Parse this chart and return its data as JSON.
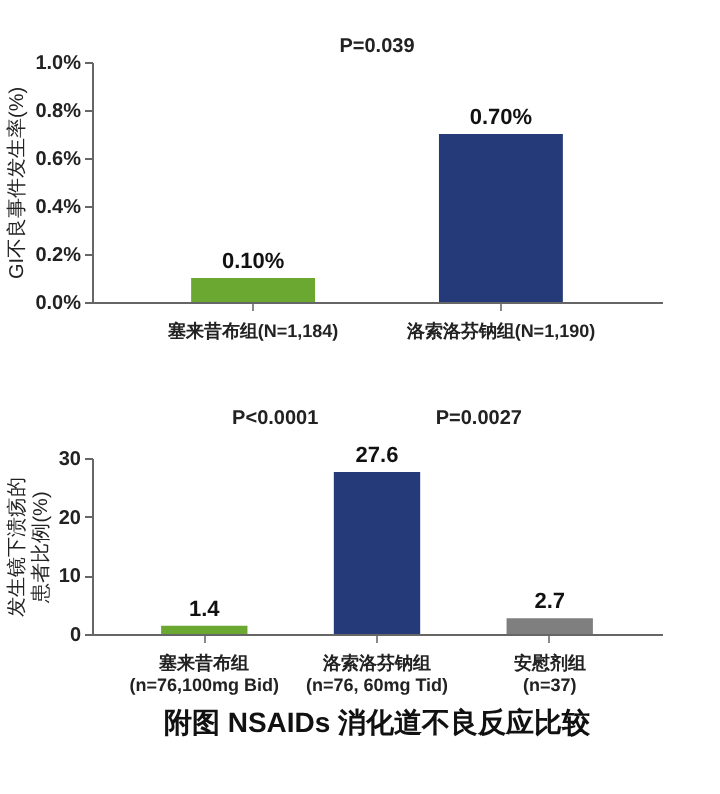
{
  "chart_data": [
    {
      "type": "bar",
      "ylabel": "GI不良事件发生率(%)",
      "categories": [
        "塞来昔布组(N=1,184)",
        "洛索洛芬钠组(N=1,190)"
      ],
      "values": [
        0.1,
        0.7
      ],
      "colors": [
        "#6aa832",
        "#253a78"
      ],
      "value_labels": [
        "0.10%",
        "0.70%"
      ],
      "ylim": [
        0,
        1.0
      ],
      "yticks": [
        {
          "value": 0,
          "label": "0.0%"
        },
        {
          "value": 0.2,
          "label": "0.2%"
        },
        {
          "value": 0.4,
          "label": "0.4%"
        },
        {
          "value": 0.6,
          "label": "0.6%"
        },
        {
          "value": 0.8,
          "label": "0.8%"
        },
        {
          "value": 1.0,
          "label": "1.0%"
        }
      ],
      "annotations": [
        "P=0.039"
      ]
    },
    {
      "type": "bar",
      "title": "附图 NSAIDs 消化道不良反应比较",
      "ylabel": "发生镜下溃疡的患者比例(%)",
      "categories": [
        "塞来昔布组\n(n=76,100mg Bid)",
        "洛索洛芬钠组\n(n=76, 60mg Tid)",
        "安慰剂组\n(n=37)"
      ],
      "values": [
        1.4,
        27.6,
        2.7
      ],
      "colors": [
        "#6aa832",
        "#253a78",
        "#7f7f7f"
      ],
      "data_labels": true,
      "ylim": [
        0,
        30
      ],
      "yticks": [
        0,
        10,
        20,
        30
      ],
      "annotations": [
        "P<0.0001",
        "P=0.0027"
      ]
    }
  ]
}
